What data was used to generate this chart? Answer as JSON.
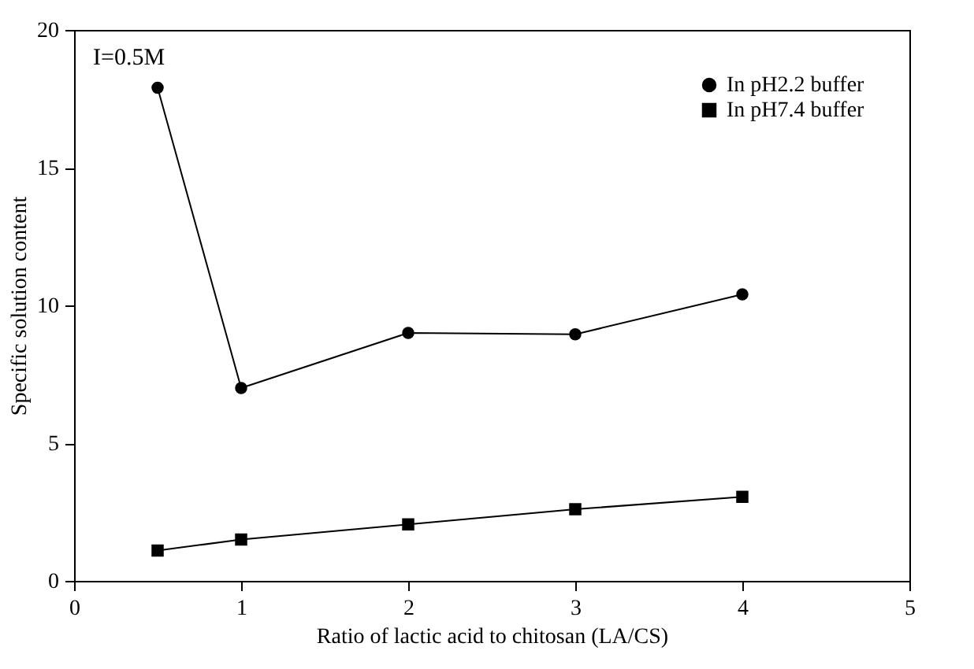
{
  "chart_data": {
    "type": "line",
    "xlabel": "Ratio of lactic acid to chitosan (LA/CS)",
    "ylabel": "Specific solution content",
    "annotations": [
      "I=0.5M"
    ],
    "x": [
      0.5,
      1,
      2,
      3,
      4
    ],
    "series": [
      {
        "name": "In pH2.2 buffer",
        "color": "#000000",
        "marker": "circle",
        "values": [
          17.9,
          7.0,
          9.0,
          8.95,
          10.4
        ]
      },
      {
        "name": "In pH7.4 buffer",
        "color": "#000000",
        "marker": "square",
        "values": [
          1.1,
          1.5,
          2.05,
          2.6,
          3.05
        ]
      }
    ],
    "xlim": [
      0,
      5
    ],
    "xticks": [
      0,
      1,
      2,
      3,
      4,
      5
    ],
    "ylim": [
      0,
      20
    ],
    "yticks": [
      0,
      5,
      10,
      15,
      20
    ],
    "grid": false,
    "legend": "top right",
    "line_style": "solid"
  }
}
